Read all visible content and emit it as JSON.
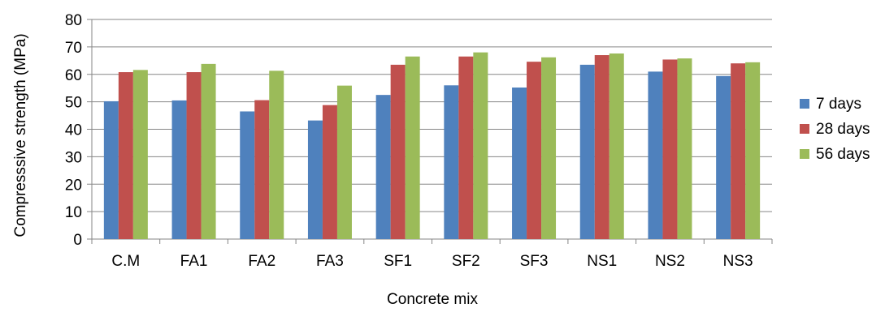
{
  "chart_data": {
    "type": "bar",
    "title": "",
    "xlabel": "Concrete mix",
    "ylabel": "Compresssive strength (MPa)",
    "ylim": [
      0,
      80
    ],
    "yticks": [
      0,
      10,
      20,
      30,
      40,
      50,
      60,
      70,
      80
    ],
    "grid": true,
    "legend_position": "right",
    "categories": [
      "C.M",
      "FA1",
      "FA2",
      "FA3",
      "SF1",
      "SF2",
      "SF3",
      "NS1",
      "NS2",
      "NS3"
    ],
    "series": [
      {
        "name": "7 days",
        "color": "#4f81bd",
        "values": [
          50.2,
          50.5,
          46.5,
          43.2,
          52.5,
          56.0,
          55.2,
          63.5,
          61.0,
          59.4
        ]
      },
      {
        "name": "28 days",
        "color": "#c0504d",
        "values": [
          60.8,
          60.8,
          50.6,
          48.8,
          63.5,
          66.5,
          64.6,
          67.0,
          65.4,
          64.0
        ]
      },
      {
        "name": "56 days",
        "color": "#9bbb59",
        "values": [
          61.6,
          63.8,
          61.3,
          55.9,
          66.5,
          68.0,
          66.2,
          67.6,
          65.8,
          64.4
        ]
      }
    ]
  }
}
